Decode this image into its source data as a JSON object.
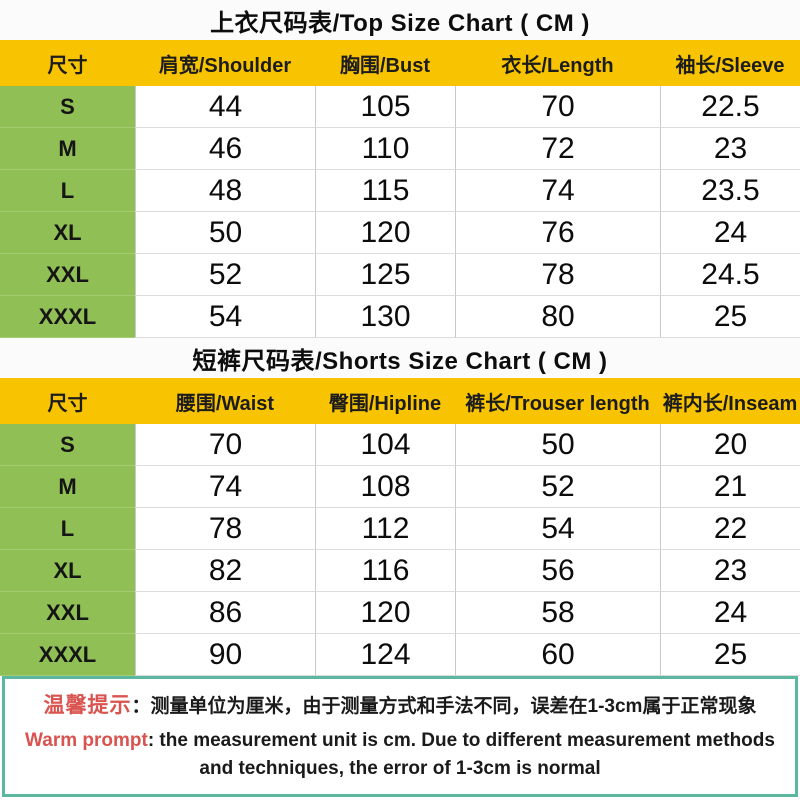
{
  "top_chart": {
    "title": "上衣尺码表/Top Size Chart ( CM )",
    "headers": [
      "尺寸",
      "肩宽/Shoulder",
      "胸围/Bust",
      "衣长/Length",
      "袖长/Sleeve"
    ],
    "rows": [
      {
        "size": "S",
        "values": [
          "44",
          "105",
          "70",
          "22.5"
        ]
      },
      {
        "size": "M",
        "values": [
          "46",
          "110",
          "72",
          "23"
        ]
      },
      {
        "size": "L",
        "values": [
          "48",
          "115",
          "74",
          "23.5"
        ]
      },
      {
        "size": "XL",
        "values": [
          "50",
          "120",
          "76",
          "24"
        ]
      },
      {
        "size": "XXL",
        "values": [
          "52",
          "125",
          "78",
          "24.5"
        ]
      },
      {
        "size": "XXXL",
        "values": [
          "54",
          "130",
          "80",
          "25"
        ]
      }
    ]
  },
  "shorts_chart": {
    "title": "短裤尺码表/Shorts Size Chart ( CM )",
    "headers": [
      "尺寸",
      "腰围/Waist",
      "臀围/Hipline",
      "裤长/Trouser length",
      "裤内长/Inseam"
    ],
    "rows": [
      {
        "size": "S",
        "values": [
          "70",
          "104",
          "50",
          "20"
        ]
      },
      {
        "size": "M",
        "values": [
          "74",
          "108",
          "52",
          "21"
        ]
      },
      {
        "size": "L",
        "values": [
          "78",
          "112",
          "54",
          "22"
        ]
      },
      {
        "size": "XL",
        "values": [
          "82",
          "116",
          "56",
          "23"
        ]
      },
      {
        "size": "XXL",
        "values": [
          "86",
          "120",
          "58",
          "24"
        ]
      },
      {
        "size": "XXXL",
        "values": [
          "90",
          "124",
          "60",
          "25"
        ]
      }
    ]
  },
  "notice": {
    "label_cn": "温馨提示",
    "text_cn": "：测量单位为厘米，由于测量方式和手法不同，误差在1-3cm属于正常现象",
    "label_en": "Warm prompt",
    "text_en": ": the measurement unit is cm. Due to different measurement methods and techniques, the error of 1-3cm is normal"
  },
  "colors": {
    "header_yellow": "#f8c301",
    "size_green": "#90bf55",
    "notice_border_teal": "#5bb7a0",
    "accent_red": "#d9534f"
  }
}
